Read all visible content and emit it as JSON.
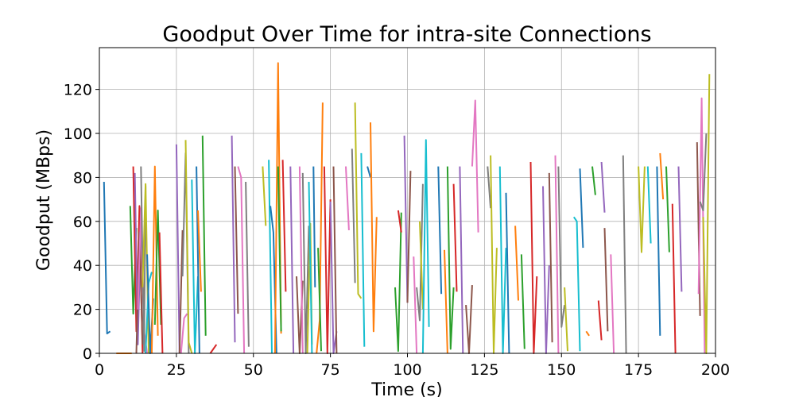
{
  "chart_data": {
    "type": "line",
    "title": "Goodput Over Time for intra-site Connections",
    "xlabel": "Time (s)",
    "ylabel": "Goodput (MBps)",
    "xlim": [
      0,
      200
    ],
    "ylim": [
      0,
      139
    ],
    "xticks": [
      0,
      25,
      50,
      75,
      100,
      125,
      150,
      175,
      200
    ],
    "yticks": [
      0,
      20,
      40,
      60,
      80,
      100,
      120
    ],
    "grid": true,
    "legend": "none",
    "colors": [
      "#1f77b4",
      "#ff7f0e",
      "#2ca02c",
      "#d62728",
      "#9467bd",
      "#8c564b",
      "#e377c2",
      "#7f7f7f",
      "#bcbd22",
      "#17becf"
    ],
    "series": [
      {
        "x": [
          1.5,
          2.5,
          3.5
        ],
        "y": [
          78,
          9,
          10
        ]
      },
      {
        "x": [
          5.5,
          8.5,
          10.5
        ],
        "y": [
          0,
          0,
          0
        ]
      },
      {
        "x": [
          10,
          11,
          12
        ],
        "y": [
          67,
          18,
          57
        ]
      },
      {
        "x": [
          11,
          12,
          13,
          14
        ],
        "y": [
          85,
          10,
          67,
          0
        ]
      },
      {
        "x": [
          11.5,
          12.5,
          13.5
        ],
        "y": [
          82,
          4,
          60
        ]
      },
      {
        "x": [
          12,
          13,
          14
        ],
        "y": [
          0,
          55,
          4
        ]
      },
      {
        "x": [
          12.5,
          13.5,
          14.5,
          15.5
        ],
        "y": [
          20,
          66,
          10,
          0
        ]
      },
      {
        "x": [
          13.5,
          14.5,
          15
        ],
        "y": [
          85,
          1,
          76
        ]
      },
      {
        "x": [
          14,
          15,
          16
        ],
        "y": [
          30,
          77,
          0
        ]
      },
      {
        "x": [
          15,
          16,
          17
        ],
        "y": [
          0,
          32,
          37
        ]
      },
      {
        "x": [
          15.5,
          16.5,
          17.5
        ],
        "y": [
          45,
          0,
          25
        ]
      },
      {
        "x": [
          17,
          18,
          19
        ],
        "y": [
          0,
          85,
          8
        ]
      },
      {
        "x": [
          18,
          19,
          20
        ],
        "y": [
          13,
          65,
          13
        ]
      },
      {
        "x": [
          19.5,
          20.5
        ],
        "y": [
          55,
          0
        ]
      },
      {
        "x": [
          25,
          26
        ],
        "y": [
          95,
          0
        ]
      },
      {
        "x": [
          26,
          27
        ],
        "y": [
          0,
          56
        ]
      },
      {
        "x": [
          26.5,
          27.5,
          28.5
        ],
        "y": [
          0,
          16,
          18
        ]
      },
      {
        "x": [
          27,
          28,
          29
        ],
        "y": [
          35,
          91,
          0
        ]
      },
      {
        "x": [
          28,
          29,
          30
        ],
        "y": [
          97,
          5,
          0
        ]
      },
      {
        "x": [
          30,
          31,
          32
        ],
        "y": [
          79,
          0,
          35
        ]
      },
      {
        "x": [
          31.5,
          32.5
        ],
        "y": [
          85,
          0
        ]
      },
      {
        "x": [
          32,
          33
        ],
        "y": [
          65,
          28
        ]
      },
      {
        "x": [
          33.5,
          34.5
        ],
        "y": [
          99,
          8
        ]
      },
      {
        "x": [
          36,
          38
        ],
        "y": [
          0,
          4
        ]
      },
      {
        "x": [
          43,
          44
        ],
        "y": [
          99,
          5
        ]
      },
      {
        "x": [
          44,
          45
        ],
        "y": [
          85,
          18
        ]
      },
      {
        "x": [
          45,
          46,
          47
        ],
        "y": [
          85,
          80,
          0
        ]
      },
      {
        "x": [
          47.5,
          48.5
        ],
        "y": [
          78,
          3
        ]
      },
      {
        "x": [
          53,
          54
        ],
        "y": [
          85,
          58
        ]
      },
      {
        "x": [
          55,
          56
        ],
        "y": [
          88,
          0
        ]
      },
      {
        "x": [
          55.5,
          56.5,
          57.5
        ],
        "y": [
          67,
          55,
          0
        ]
      },
      {
        "x": [
          57,
          58,
          59
        ],
        "y": [
          0,
          132,
          9
        ]
      },
      {
        "x": [
          58,
          59
        ],
        "y": [
          85,
          10
        ]
      },
      {
        "x": [
          59.5,
          60.5
        ],
        "y": [
          88,
          28
        ]
      },
      {
        "x": [
          62,
          63
        ],
        "y": [
          85,
          0
        ]
      },
      {
        "x": [
          64,
          65,
          66
        ],
        "y": [
          35,
          0,
          33
        ]
      },
      {
        "x": [
          65,
          66
        ],
        "y": [
          85,
          0
        ]
      },
      {
        "x": [
          66,
          67,
          68
        ],
        "y": [
          82,
          0,
          58
        ]
      },
      {
        "x": [
          67.5,
          68.5,
          69
        ],
        "y": [
          0,
          59,
          4
        ]
      },
      {
        "x": [
          68,
          69
        ],
        "y": [
          78,
          0
        ]
      },
      {
        "x": [
          69.5,
          70
        ],
        "y": [
          85,
          30
        ]
      },
      {
        "x": [
          70.5,
          71.5,
          72.5
        ],
        "y": [
          0,
          15,
          114
        ]
      },
      {
        "x": [
          71,
          72
        ],
        "y": [
          48,
          1
        ]
      },
      {
        "x": [
          73,
          74,
          75
        ],
        "y": [
          85,
          0,
          70
        ]
      },
      {
        "x": [
          75,
          76,
          77
        ],
        "y": [
          69,
          0,
          10
        ]
      },
      {
        "x": [
          76,
          77
        ],
        "y": [
          85,
          0
        ]
      },
      {
        "x": [
          80,
          81
        ],
        "y": [
          85,
          56
        ]
      },
      {
        "x": [
          82,
          83
        ],
        "y": [
          93,
          32
        ]
      },
      {
        "x": [
          83,
          84,
          85
        ],
        "y": [
          114,
          27,
          25
        ]
      },
      {
        "x": [
          85,
          86
        ],
        "y": [
          91,
          3
        ]
      },
      {
        "x": [
          87,
          88
        ],
        "y": [
          85,
          80
        ]
      },
      {
        "x": [
          88,
          89,
          90
        ],
        "y": [
          105,
          10,
          62
        ]
      },
      {
        "x": [
          96,
          97,
          98
        ],
        "y": [
          30,
          1,
          64
        ]
      },
      {
        "x": [
          97,
          98
        ],
        "y": [
          65,
          55
        ]
      },
      {
        "x": [
          99,
          100
        ],
        "y": [
          99,
          23
        ]
      },
      {
        "x": [
          100,
          101
        ],
        "y": [
          23,
          83
        ]
      },
      {
        "x": [
          102,
          103
        ],
        "y": [
          44,
          0
        ]
      },
      {
        "x": [
          103,
          104,
          105
        ],
        "y": [
          30,
          15,
          77
        ]
      },
      {
        "x": [
          104,
          105
        ],
        "y": [
          60,
          20
        ]
      },
      {
        "x": [
          105,
          106,
          107
        ],
        "y": [
          0,
          97,
          12
        ]
      },
      {
        "x": [
          110,
          111
        ],
        "y": [
          85,
          27
        ]
      },
      {
        "x": [
          112,
          113
        ],
        "y": [
          47,
          0
        ]
      },
      {
        "x": [
          113,
          114,
          115
        ],
        "y": [
          85,
          2,
          30
        ]
      },
      {
        "x": [
          115,
          116
        ],
        "y": [
          77,
          28
        ]
      },
      {
        "x": [
          117,
          118
        ],
        "y": [
          85,
          0
        ]
      },
      {
        "x": [
          119,
          120,
          121
        ],
        "y": [
          22,
          0,
          31
        ]
      },
      {
        "x": [
          121,
          122,
          123
        ],
        "y": [
          85,
          115,
          55
        ]
      },
      {
        "x": [
          126,
          127
        ],
        "y": [
          85,
          66
        ]
      },
      {
        "x": [
          127,
          128,
          129
        ],
        "y": [
          90,
          0,
          48
        ]
      },
      {
        "x": [
          130,
          131,
          132
        ],
        "y": [
          85,
          0,
          48
        ]
      },
      {
        "x": [
          132,
          133
        ],
        "y": [
          73,
          0
        ]
      },
      {
        "x": [
          135,
          136
        ],
        "y": [
          58,
          24
        ]
      },
      {
        "x": [
          137,
          138
        ],
        "y": [
          45,
          2
        ]
      },
      {
        "x": [
          140,
          141,
          142
        ],
        "y": [
          87,
          0,
          35
        ]
      },
      {
        "x": [
          144,
          145,
          146
        ],
        "y": [
          76,
          0,
          40
        ]
      },
      {
        "x": [
          146,
          147
        ],
        "y": [
          82,
          5
        ]
      },
      {
        "x": [
          148,
          149
        ],
        "y": [
          90,
          0
        ]
      },
      {
        "x": [
          149,
          150,
          151
        ],
        "y": [
          85,
          12,
          22
        ]
      },
      {
        "x": [
          151,
          152
        ],
        "y": [
          30,
          1
        ]
      },
      {
        "x": [
          154,
          155,
          156
        ],
        "y": [
          62,
          60,
          1
        ]
      },
      {
        "x": [
          156,
          157
        ],
        "y": [
          84,
          48
        ]
      },
      {
        "x": [
          158,
          159
        ],
        "y": [
          10,
          8
        ]
      },
      {
        "x": [
          160,
          161
        ],
        "y": [
          85,
          72
        ]
      },
      {
        "x": [
          162,
          163
        ],
        "y": [
          24,
          6
        ]
      },
      {
        "x": [
          163,
          164
        ],
        "y": [
          87,
          64
        ]
      },
      {
        "x": [
          164,
          165
        ],
        "y": [
          57,
          10
        ]
      },
      {
        "x": [
          166,
          167
        ],
        "y": [
          45,
          0
        ]
      },
      {
        "x": [
          170,
          171
        ],
        "y": [
          90,
          0
        ]
      },
      {
        "x": [
          175,
          176,
          177
        ],
        "y": [
          85,
          46,
          85
        ]
      },
      {
        "x": [
          178,
          179
        ],
        "y": [
          85,
          50
        ]
      },
      {
        "x": [
          181,
          182
        ],
        "y": [
          85,
          8
        ]
      },
      {
        "x": [
          182,
          183
        ],
        "y": [
          91,
          70
        ]
      },
      {
        "x": [
          184,
          185
        ],
        "y": [
          85,
          46
        ]
      },
      {
        "x": [
          186,
          187
        ],
        "y": [
          68,
          0
        ]
      },
      {
        "x": [
          188,
          189
        ],
        "y": [
          85,
          28
        ]
      },
      {
        "x": [
          194,
          195
        ],
        "y": [
          96,
          17
        ]
      },
      {
        "x": [
          194.5,
          195.5,
          196.5
        ],
        "y": [
          27,
          116,
          0
        ]
      },
      {
        "x": [
          195,
          196,
          197
        ],
        "y": [
          69,
          65,
          100
        ]
      },
      {
        "x": [
          196,
          197,
          198
        ],
        "y": [
          62,
          0,
          127
        ]
      }
    ]
  }
}
